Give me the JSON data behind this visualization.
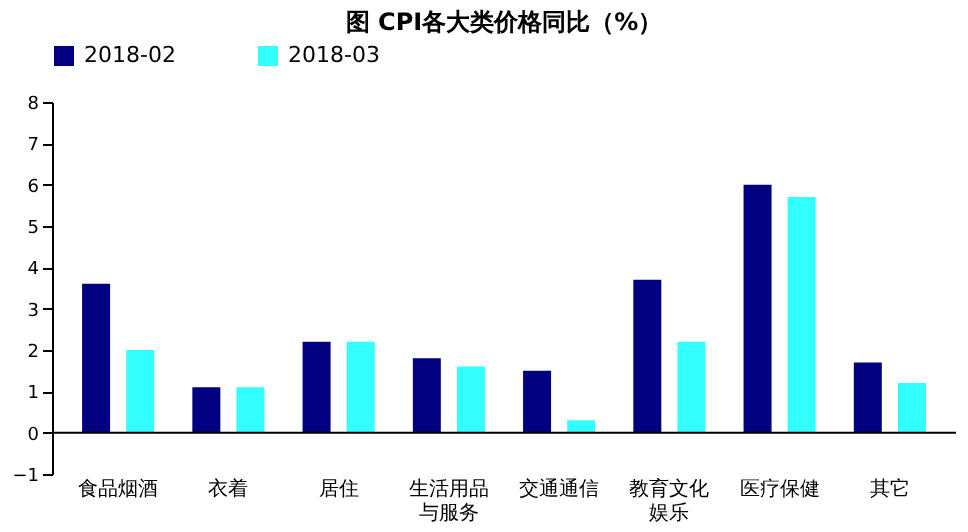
{
  "chart_data": {
    "type": "bar",
    "title": "图 CPI各大类价格同比（%）",
    "categories": [
      "食品烟酒",
      "衣着",
      "居住",
      "生活用品与服务",
      "交通通信",
      "教育文化娱乐",
      "医疗保健",
      "其它"
    ],
    "series": [
      {
        "name": "2018-02",
        "color": "#000080",
        "values": [
          3.6,
          1.1,
          2.2,
          1.8,
          1.5,
          3.7,
          6.0,
          1.7
        ]
      },
      {
        "name": "2018-03",
        "color": "#33ffff",
        "values": [
          2.0,
          1.1,
          2.2,
          1.6,
          0.3,
          2.2,
          5.7,
          1.2
        ]
      }
    ],
    "ylim": [
      -1,
      8
    ],
    "yticks": [
      -1,
      0,
      1,
      2,
      3,
      4,
      5,
      6,
      7,
      8
    ],
    "grid": false,
    "legend": "top"
  }
}
